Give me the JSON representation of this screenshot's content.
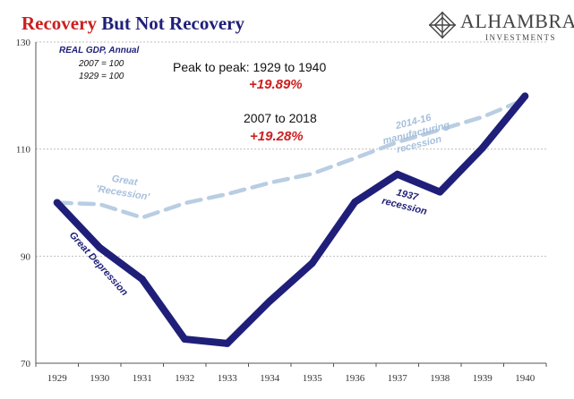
{
  "title": {
    "part1": "Recovery",
    "part2": "But Not Recovery"
  },
  "logo": {
    "name": "ALHAMBRA",
    "sub": "INVESTMENTS"
  },
  "notes": {
    "series": "REAL GDP, Annual",
    "base1": "2007 = 100",
    "base2": "1929 = 100"
  },
  "annotations": {
    "peak_label": "Peak to peak: 1929  to 1940",
    "peak_value": "+19.89%",
    "recent_label": "2007 to 2018",
    "recent_value": "+19.28%",
    "great_recession": [
      "Great",
      "'Recession'"
    ],
    "manufacturing": [
      "2014-16",
      "manufacturing",
      "recession"
    ],
    "recession_1937": [
      "1937",
      "recession"
    ],
    "great_depression": "Great Depression"
  },
  "colors": {
    "main_line": "#1f1f7a",
    "dashed_line": "#b9cde3",
    "red": "#cc1f1f",
    "grid": "#bfbfbf",
    "axis_text": "#333333"
  },
  "chart_data": {
    "type": "line",
    "categories": [
      "1929",
      "1930",
      "1931",
      "1932",
      "1933",
      "1934",
      "1935",
      "1936",
      "1937",
      "1938",
      "1939",
      "1940"
    ],
    "ylim": [
      70,
      130
    ],
    "yticks": [
      70,
      90,
      110,
      130
    ],
    "grid": true,
    "series": [
      {
        "values": [
          100,
          91.6,
          85.7,
          74.5,
          73.7,
          81.6,
          88.7,
          100.1,
          105.3,
          102.0,
          110.2,
          119.9
        ]
      },
      {
        "values": [
          100,
          99.7,
          97.2,
          99.9,
          101.6,
          103.7,
          105.4,
          108.3,
          111.3,
          113.6,
          116.0,
          119.3
        ]
      }
    ]
  }
}
